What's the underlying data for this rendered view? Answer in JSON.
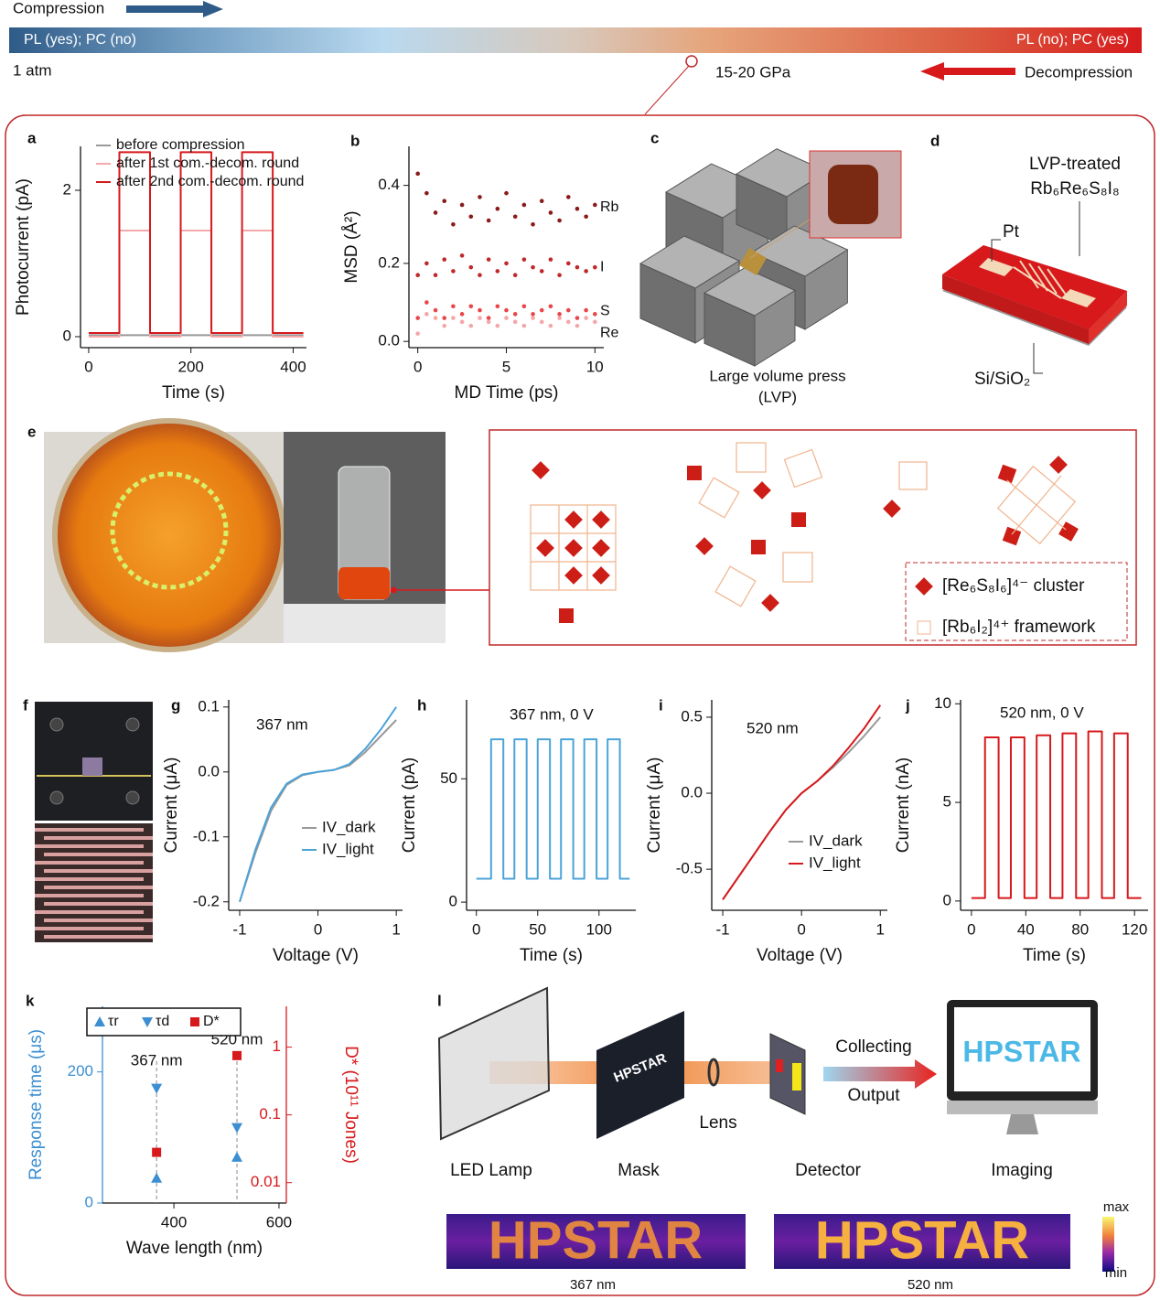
{
  "header": {
    "compression": "Compression",
    "left_state": "PL (yes);  PC (no)",
    "right_state": "PL (no);  PC (yes)",
    "start_pressure": "1 atm",
    "transition_pressure": "15-20 GPa",
    "decompression": "Decompression"
  },
  "chart_data": [
    {
      "type": "line",
      "label": "a",
      "xlabel": "Time (s)",
      "ylabel": "Photocurrent (pA)",
      "xlim": [
        -16,
        426
      ],
      "ylim": [
        -0.15,
        2.6
      ],
      "xticks": [
        0,
        200,
        400
      ],
      "yticks": [
        0,
        2
      ],
      "legend": "upper left",
      "x": [
        0,
        60,
        60,
        120,
        120,
        180,
        180,
        240,
        240,
        300,
        300,
        360,
        360,
        420
      ],
      "series": [
        {
          "name": "before compression",
          "color": "#999999",
          "values": [
            0.02,
            0.02,
            0.02,
            0.02,
            0.02,
            0.02,
            0.02,
            0.02,
            0.02,
            0.02,
            0.02,
            0.02,
            0.02,
            0.02
          ]
        },
        {
          "name": "after 1st com.-decom. round",
          "color": "#f4a9ab",
          "values": [
            0,
            0,
            1.45,
            1.45,
            0,
            0,
            1.45,
            1.45,
            0,
            0,
            1.45,
            1.45,
            0,
            0
          ]
        },
        {
          "name": "after 2nd com.-decom. round",
          "color": "#d7191c",
          "values": [
            0.05,
            0.05,
            2.52,
            2.52,
            0.05,
            0.05,
            2.52,
            2.52,
            0.05,
            0.05,
            2.52,
            2.52,
            0.05,
            0.05
          ]
        }
      ]
    },
    {
      "type": "scatter",
      "label": "b",
      "xlabel": "MD Time (ps)",
      "ylabel": "MSD (Å²)",
      "xlim": [
        -0.5,
        10.5
      ],
      "ylim": [
        -0.016,
        0.5
      ],
      "xticks": [
        0,
        5,
        10
      ],
      "yticks": [
        {
          "value": 0,
          "label": "0.0"
        },
        0.2,
        0.4
      ],
      "legend": "right",
      "x": [
        0,
        0.5,
        1,
        1.5,
        2,
        2.5,
        3,
        3.5,
        4,
        4.5,
        5,
        5.5,
        6,
        6.5,
        7,
        7.5,
        8,
        8.5,
        9,
        9.5,
        10
      ],
      "series": [
        {
          "name": "Rb",
          "color": "#8b1a1a",
          "values": [
            0.43,
            0.38,
            0.33,
            0.36,
            0.3,
            0.35,
            0.32,
            0.37,
            0.31,
            0.34,
            0.38,
            0.32,
            0.35,
            0.3,
            0.36,
            0.33,
            0.31,
            0.37,
            0.34,
            0.32,
            0.35
          ]
        },
        {
          "name": "I",
          "color": "#c0282a",
          "values": [
            0.17,
            0.2,
            0.17,
            0.21,
            0.18,
            0.22,
            0.19,
            0.17,
            0.21,
            0.18,
            0.2,
            0.17,
            0.21,
            0.19,
            0.18,
            0.21,
            0.17,
            0.2,
            0.19,
            0.18,
            0.19
          ]
        },
        {
          "name": "S",
          "color": "#e8474a",
          "values": [
            0.06,
            0.1,
            0.08,
            0.06,
            0.09,
            0.07,
            0.09,
            0.08,
            0.06,
            0.09,
            0.08,
            0.07,
            0.09,
            0.07,
            0.08,
            0.09,
            0.07,
            0.08,
            0.06,
            0.08,
            0.07
          ]
        },
        {
          "name": "Re",
          "color": "#f4a6a8",
          "values": [
            0.02,
            0.07,
            0.06,
            0.04,
            0.06,
            0.05,
            0.04,
            0.06,
            0.05,
            0.04,
            0.06,
            0.05,
            0.04,
            0.06,
            0.05,
            0.04,
            0.06,
            0.05,
            0.04,
            0.06,
            0.05
          ]
        }
      ]
    },
    {
      "type": "line",
      "label": "g",
      "title": "367 nm",
      "xlabel": "Voltage (V)",
      "ylabel": "Current (μA)",
      "xlim": [
        -1.14,
        1.08
      ],
      "ylim": [
        -0.213,
        0.111
      ],
      "xticks": [
        -1,
        0,
        1
      ],
      "yticks": [
        -0.2,
        -0.1,
        {
          "value": 0,
          "label": "0.0"
        },
        0.1
      ],
      "legend": "lower right",
      "x": [
        -1,
        -0.8,
        -0.6,
        -0.4,
        -0.2,
        0,
        0.2,
        0.4,
        0.6,
        0.8,
        1
      ],
      "series": [
        {
          "name": "IV_dark",
          "color": "#999999",
          "values": [
            -0.2,
            -0.125,
            -0.06,
            -0.02,
            -0.005,
            0,
            0.003,
            0.01,
            0.03,
            0.055,
            0.08
          ]
        },
        {
          "name": "IV_light",
          "color": "#4ba3d8",
          "values": [
            -0.2,
            -0.12,
            -0.055,
            -0.018,
            -0.004,
            0,
            0.003,
            0.012,
            0.035,
            0.065,
            0.1
          ]
        }
      ]
    },
    {
      "type": "line",
      "label": "h",
      "title": "367 nm, 0 V",
      "xlabel": "Time (s)",
      "ylabel": "Current (pA)",
      "xlim": [
        -8,
        130
      ],
      "ylim": [
        -3.3,
        82
      ],
      "xticks": [
        0,
        50,
        100
      ],
      "yticks": [
        0,
        50
      ],
      "x": [
        0,
        12,
        12,
        22,
        22,
        31,
        31,
        41,
        41,
        50,
        50,
        60,
        60,
        69,
        69,
        79,
        79,
        88,
        88,
        98,
        98,
        107,
        107,
        117,
        117,
        125
      ],
      "series": [
        {
          "color": "#4ba3d8",
          "values": [
            9.5,
            9.5,
            66,
            66,
            9.5,
            9.5,
            66,
            66,
            9.5,
            9.5,
            66,
            66,
            9.5,
            9.5,
            66,
            66,
            9.5,
            9.5,
            66,
            66,
            9.5,
            9.5,
            66,
            66,
            9.5,
            9.5
          ]
        }
      ]
    },
    {
      "type": "line",
      "label": "i",
      "title": "520 nm",
      "xlabel": "Voltage (V)",
      "ylabel": "Current (μA)",
      "xlim": [
        -1.14,
        1.09
      ],
      "ylim": [
        -0.77,
        0.614
      ],
      "xticks": [
        -1,
        0,
        1
      ],
      "yticks": [
        -0.5,
        {
          "value": 0,
          "label": "0.0"
        },
        0.5
      ],
      "legend": "lower right",
      "x": [
        -1,
        -0.8,
        -0.6,
        -0.4,
        -0.2,
        0,
        0.2,
        0.4,
        0.6,
        0.8,
        1
      ],
      "series": [
        {
          "name": "IV_dark",
          "color": "#999999",
          "values": [
            -0.7,
            -0.55,
            -0.4,
            -0.25,
            -0.11,
            0,
            0.08,
            0.17,
            0.27,
            0.38,
            0.5
          ]
        },
        {
          "name": "IV_light",
          "color": "#d7191c",
          "values": [
            -0.7,
            -0.55,
            -0.4,
            -0.25,
            -0.11,
            0,
            0.08,
            0.18,
            0.3,
            0.43,
            0.58
          ]
        }
      ]
    },
    {
      "type": "line",
      "label": "j",
      "title": "520 nm, 0 V",
      "xlabel": "Time (s)",
      "ylabel": "Current (nA)",
      "xlim": [
        -8,
        130
      ],
      "ylim": [
        -0.47,
        10.2
      ],
      "xticks": [
        0,
        40,
        80,
        120
      ],
      "yticks": [
        0,
        5,
        10
      ],
      "x": [
        0,
        10,
        10,
        20,
        20,
        29,
        29,
        39,
        39,
        48,
        48,
        58,
        58,
        67,
        67,
        77,
        77,
        86,
        86,
        96,
        96,
        105,
        105,
        115,
        115,
        125
      ],
      "series": [
        {
          "color": "#d7191c",
          "values": [
            0.15,
            0.15,
            8.3,
            8.3,
            0.15,
            0.15,
            8.3,
            8.3,
            0.15,
            0.15,
            8.4,
            8.4,
            0.15,
            0.15,
            8.5,
            8.5,
            0.15,
            0.15,
            8.6,
            8.6,
            0.15,
            0.15,
            8.5,
            8.5,
            0.15,
            0.15
          ]
        }
      ]
    },
    {
      "type": "scatter",
      "label": "k",
      "xlabel": "Wave length (nm)",
      "ylabel": "Response time (μs)",
      "y2label": "D* (10¹¹ Jones)",
      "ycolor": "#3d8fd1",
      "y2color": "#d7191c",
      "xlim": [
        264,
        614
      ],
      "ylim": [
        0,
        300
      ],
      "y2lim": [
        0.005,
        4
      ],
      "y2log": true,
      "xticks": [
        400,
        600
      ],
      "yticks": [
        0,
        200
      ],
      "y2ticks": [
        0.01,
        0.1,
        1
      ],
      "legend": "upper left",
      "annotations": [
        "367 nm",
        "520 nm"
      ],
      "x": [
        367,
        520
      ],
      "series": [
        {
          "name": "τr",
          "color": "#3d8fd1",
          "marker": "triangle-up",
          "values": [
            38,
            70
          ]
        },
        {
          "name": "τd",
          "color": "#3d8fd1",
          "marker": "triangle-down",
          "values": [
            175,
            115
          ]
        },
        {
          "name": "D*",
          "color": "#d7191c",
          "marker": "square",
          "axis": "y2",
          "values": [
            0.028,
            0.75
          ]
        }
      ]
    }
  ],
  "panel_c": {
    "label": "c",
    "caption": [
      "Large volume press",
      "(LVP)"
    ]
  },
  "panel_d": {
    "label": "d",
    "title": [
      "LVP-treated",
      "Rb₆Re₆S₈I₈"
    ],
    "electrode": "Pt",
    "substrate": "Si/SiO₂"
  },
  "panel_e": {
    "label": "e",
    "legend": [
      "[Re₆S₈I₆]⁴⁻ cluster",
      "[Rb₆I₂]⁴⁺ framework"
    ]
  },
  "panel_f": {
    "label": "f"
  },
  "panel_l": {
    "label": "l",
    "collecting": "Collecting",
    "output": "Output",
    "lens": "Lens",
    "components": [
      "LED Lamp",
      "Mask",
      "Detector",
      "Imaging"
    ],
    "mask_text": "HPSTAR",
    "screen_text": "HPSTAR",
    "images": [
      {
        "text": "HPSTAR",
        "caption": "367 nm"
      },
      {
        "text": "HPSTAR",
        "caption": "520 nm"
      }
    ],
    "colorbar": [
      "max",
      "min"
    ]
  }
}
